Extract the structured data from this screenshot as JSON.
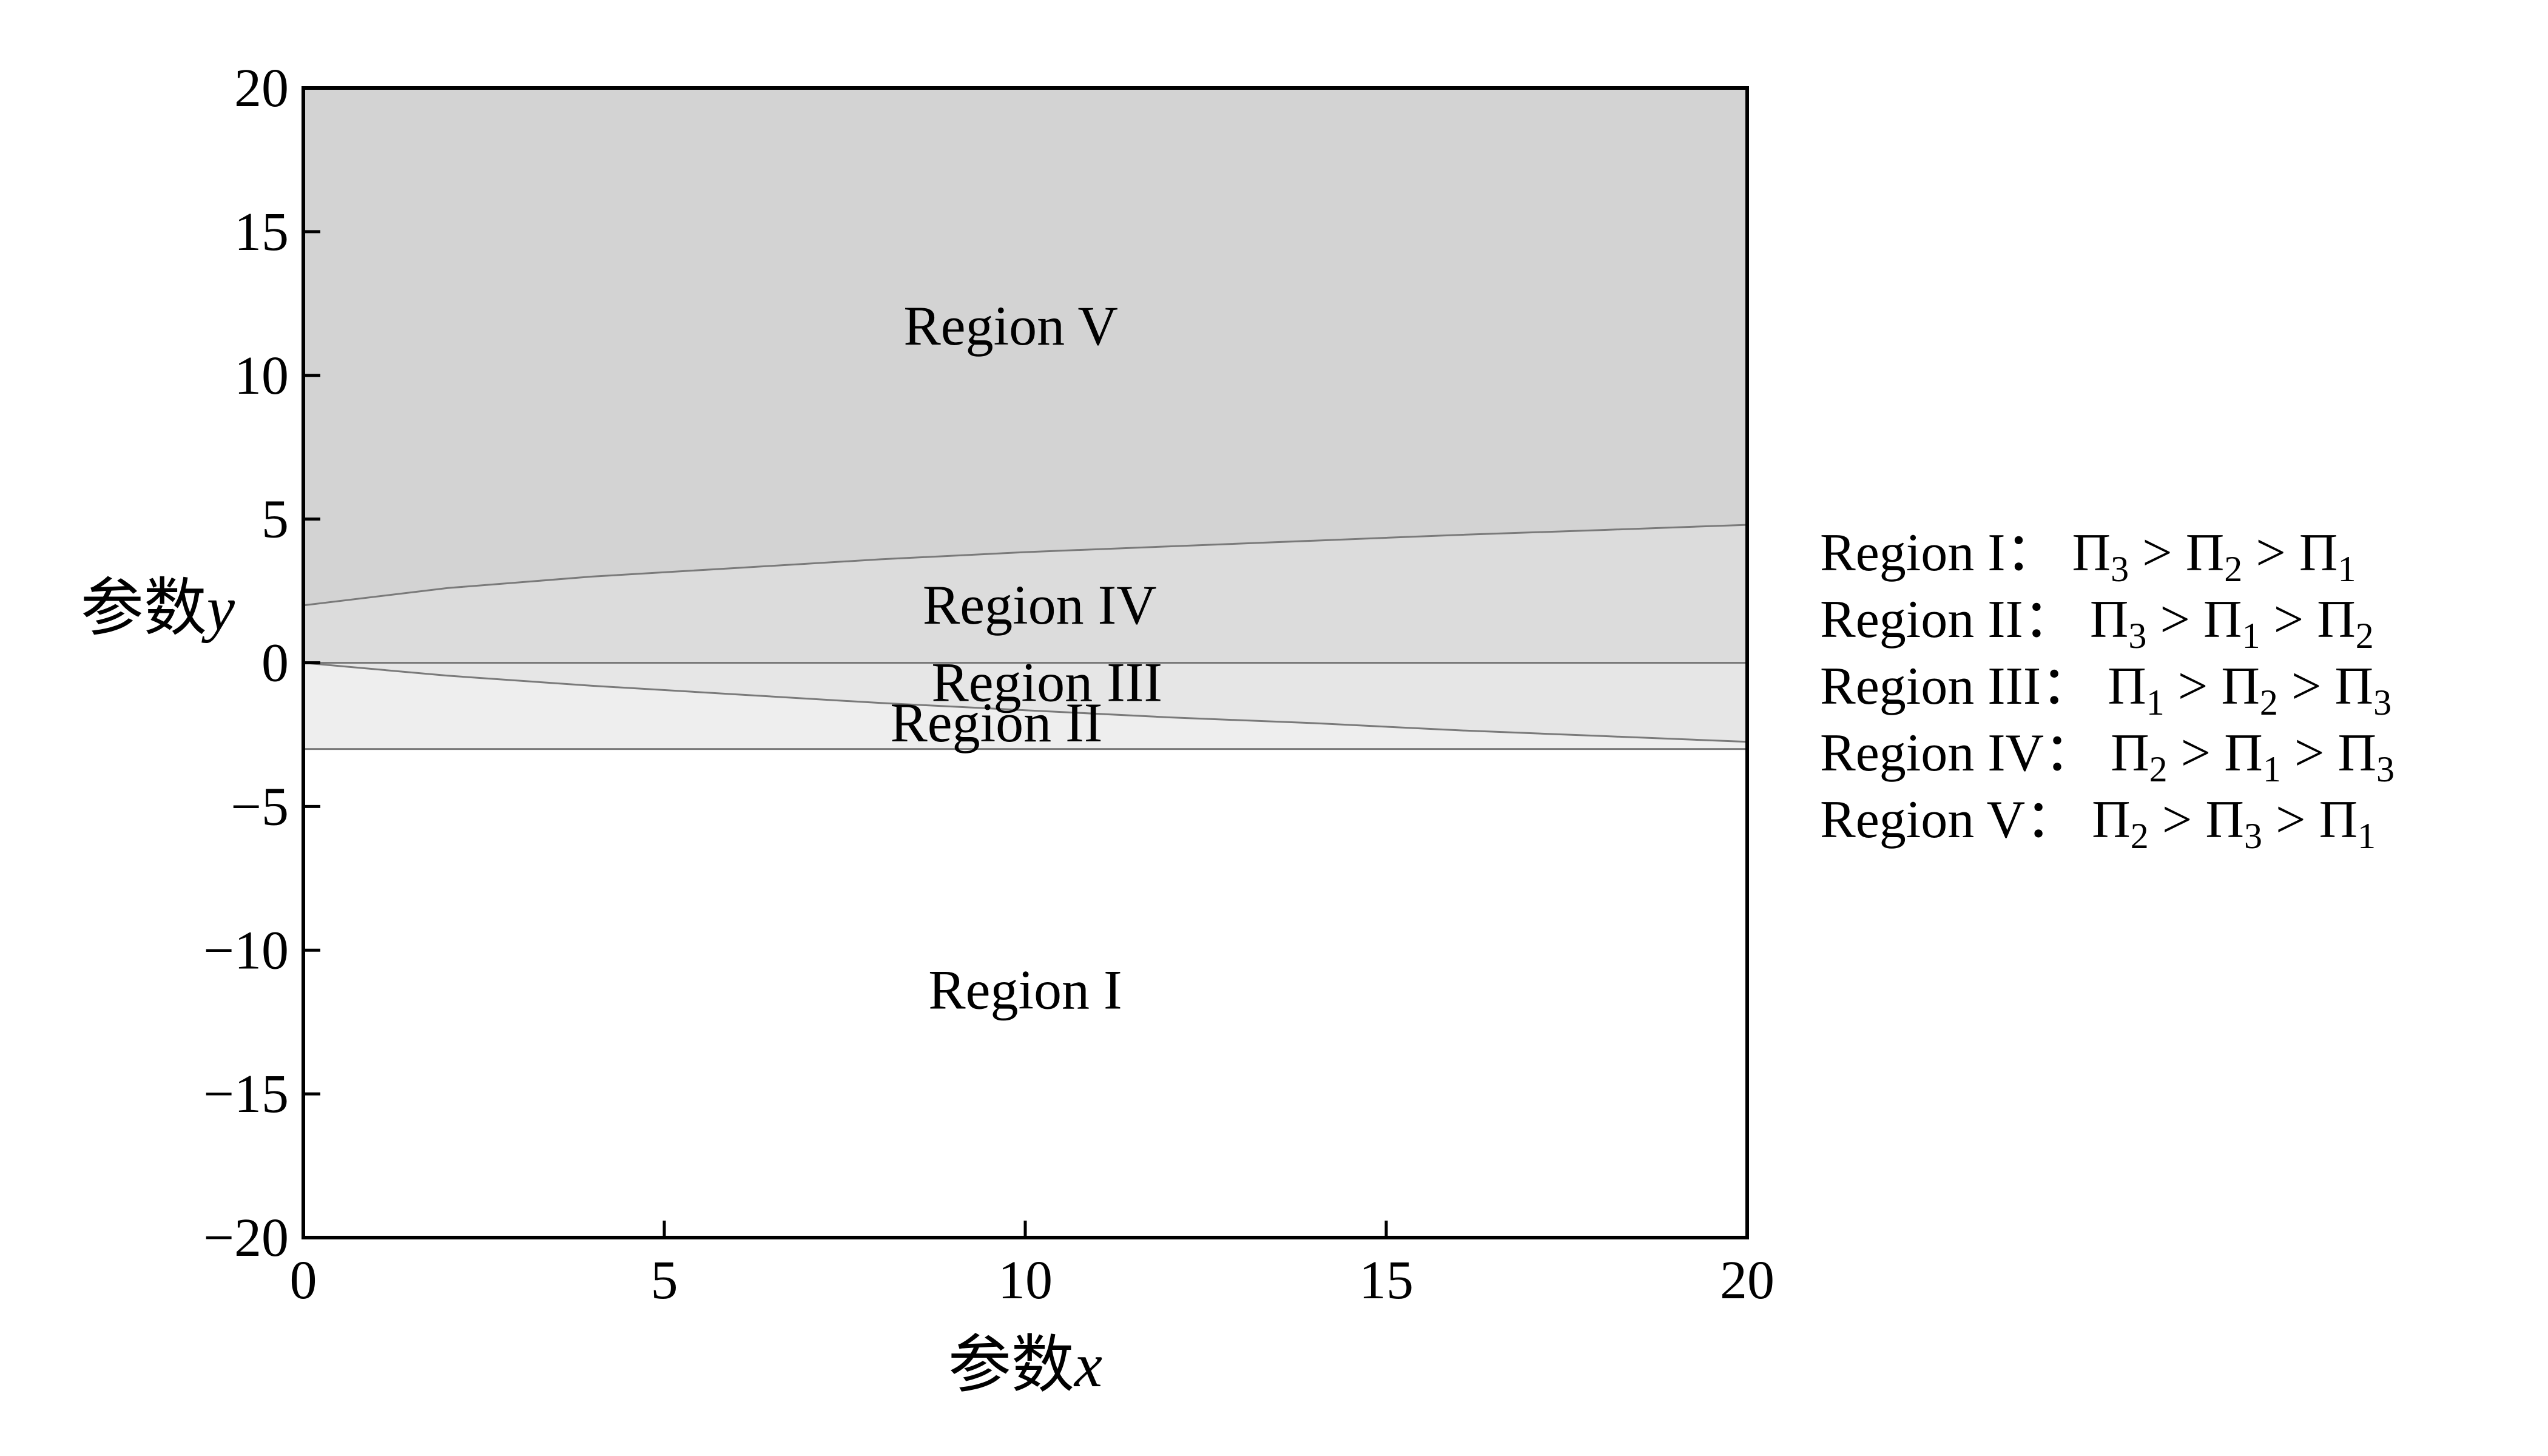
{
  "chart_data": {
    "type": "area",
    "title": "",
    "xlabel": "参数x",
    "ylabel": "参数y",
    "xlabel_prefix": "参数",
    "xlabel_var": "x",
    "ylabel_prefix": "参数",
    "ylabel_var": "y",
    "xlim": [
      0,
      20
    ],
    "ylim": [
      -20,
      20
    ],
    "xticks": [
      0,
      5,
      10,
      15,
      20
    ],
    "yticks": [
      20,
      15,
      10,
      5,
      0,
      -5,
      -10,
      -15,
      -20
    ],
    "xtick_labels": [
      "0",
      "5",
      "10",
      "15",
      "20"
    ],
    "ytick_labels": [
      "20",
      "15",
      "10",
      "5",
      "0",
      "−5",
      "−10",
      "−15",
      "−20"
    ],
    "grid": false,
    "boundaries": [
      {
        "name": "upper",
        "x": [
          0,
          2,
          4,
          6,
          8,
          10,
          12,
          14,
          16,
          18,
          20
        ],
        "y": [
          2.0,
          2.6,
          3.0,
          3.3,
          3.6,
          3.85,
          4.05,
          4.25,
          4.45,
          4.62,
          4.8
        ]
      },
      {
        "name": "zero",
        "x": [
          0,
          20
        ],
        "y": [
          0,
          0
        ]
      },
      {
        "name": "middle",
        "x": [
          0,
          2,
          4,
          6,
          8,
          10,
          12,
          14,
          16,
          18,
          20
        ],
        "y": [
          0,
          -0.45,
          -0.8,
          -1.1,
          -1.4,
          -1.65,
          -1.9,
          -2.1,
          -2.35,
          -2.55,
          -2.75
        ]
      },
      {
        "name": "lower",
        "x": [
          0,
          20
        ],
        "y": [
          -3,
          -3
        ]
      }
    ],
    "regions": [
      {
        "id": "V",
        "label": "Region  V",
        "label_x": 9.8,
        "label_y": 11.7,
        "fill": "#d3d3d3"
      },
      {
        "id": "IV",
        "label": "Region  IV",
        "label_x": 10.2,
        "label_y": 2.0,
        "fill": "#dcdcdc"
      },
      {
        "id": "III",
        "label": "Region  III",
        "label_x": 10.3,
        "label_y": -0.7,
        "fill": "#e6e6e6"
      },
      {
        "id": "II",
        "label": "Region  II",
        "label_x": 9.6,
        "label_y": -2.1,
        "fill": "#eeeeee"
      },
      {
        "id": "I",
        "label": "Region  I",
        "label_x": 10.0,
        "label_y": -11.4,
        "fill": "#ffffff"
      }
    ],
    "legend_position": "right",
    "legend": [
      {
        "label": "Region  I：",
        "order": [
          "3",
          "2",
          "1"
        ]
      },
      {
        "label": "Region  II：",
        "order": [
          "3",
          "1",
          "2"
        ]
      },
      {
        "label": "Region  III：",
        "order": [
          "1",
          "2",
          "3"
        ]
      },
      {
        "label": "Region  IV：",
        "order": [
          "2",
          "1",
          "3"
        ]
      },
      {
        "label": "Region  V：",
        "order": [
          "2",
          "3",
          "1"
        ]
      }
    ],
    "legend_symbol": "Π",
    "legend_relation": ">",
    "colors": {
      "axis": "#000000",
      "boundary": "#7a7a7a"
    }
  }
}
